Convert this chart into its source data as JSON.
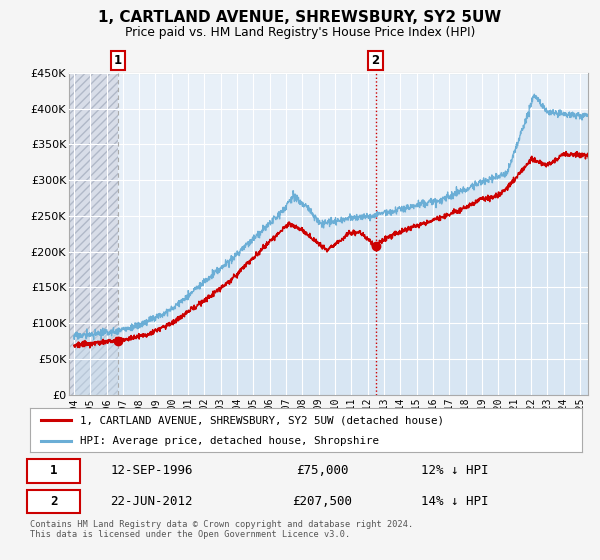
{
  "title": "1, CARTLAND AVENUE, SHREWSBURY, SY2 5UW",
  "subtitle": "Price paid vs. HM Land Registry's House Price Index (HPI)",
  "xlim": [
    1993.7,
    2025.5
  ],
  "ylim": [
    0,
    450000
  ],
  "yticks": [
    0,
    50000,
    100000,
    150000,
    200000,
    250000,
    300000,
    350000,
    400000,
    450000
  ],
  "ytick_labels": [
    "£0",
    "£50K",
    "£100K",
    "£150K",
    "£200K",
    "£250K",
    "£300K",
    "£350K",
    "£400K",
    "£450K"
  ],
  "xticks": [
    1994,
    1995,
    1996,
    1997,
    1998,
    1999,
    2000,
    2001,
    2002,
    2003,
    2004,
    2005,
    2006,
    2007,
    2008,
    2009,
    2010,
    2011,
    2012,
    2013,
    2014,
    2015,
    2016,
    2017,
    2018,
    2019,
    2020,
    2021,
    2022,
    2023,
    2024,
    2025
  ],
  "sale1_date": 1996.71,
  "sale1_price": 75000,
  "sale1_label": "1",
  "sale1_date_str": "12-SEP-1996",
  "sale1_price_str": "£75,000",
  "sale1_hpi_str": "12% ↓ HPI",
  "sale2_date": 2012.48,
  "sale2_price": 207500,
  "sale2_label": "2",
  "sale2_date_str": "22-JUN-2012",
  "sale2_price_str": "£207,500",
  "sale2_hpi_str": "14% ↓ HPI",
  "hpi_color": "#6baed6",
  "hpi_fill_color": "#c6dcee",
  "price_color": "#cc0000",
  "vline1_color": "#999999",
  "vline2_color": "#cc0000",
  "background_color": "#f5f5f5",
  "plot_bg_color": "#e8f0f8",
  "hatch_color": "#c0c8d8",
  "grid_color": "#ffffff",
  "legend_label_price": "1, CARTLAND AVENUE, SHREWSBURY, SY2 5UW (detached house)",
  "legend_label_hpi": "HPI: Average price, detached house, Shropshire",
  "footer": "Contains HM Land Registry data © Crown copyright and database right 2024.\nThis data is licensed under the Open Government Licence v3.0."
}
